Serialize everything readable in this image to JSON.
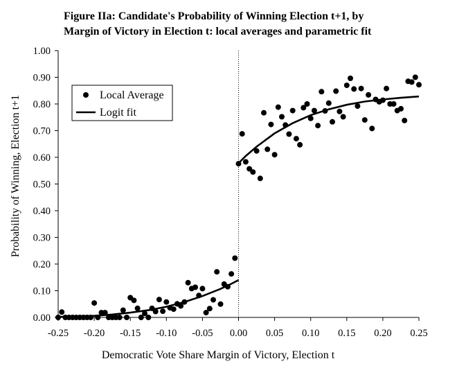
{
  "chart_data": {
    "type": "scatter",
    "title_line1": "Figure IIa: Candidate's Probability of Winning Election t+1, by",
    "title_line2": "Margin of Victory in Election t: local averages and parametric fit",
    "xlabel": "Democratic Vote Share Margin of Victory, Election t",
    "ylabel": "Probability of Winning, Election t+1",
    "xlim": [
      -0.25,
      0.25
    ],
    "ylim": [
      0,
      1
    ],
    "x_ticks": [
      "-0.25",
      "-0.20",
      "-0.15",
      "-0.10",
      "-0.05",
      "0.00",
      "0.05",
      "0.10",
      "0.15",
      "0.20",
      "0.25"
    ],
    "y_ticks": [
      "0.00",
      "0.10",
      "0.20",
      "0.30",
      "0.40",
      "0.50",
      "0.60",
      "0.70",
      "0.80",
      "0.90",
      "1.00"
    ],
    "threshold_x": 0,
    "legend": {
      "placement": "top-left",
      "entries": [
        "Local Average",
        "Logit fit"
      ]
    },
    "series": [
      {
        "name": "Local Average",
        "kind": "points",
        "points": [
          [
            -0.25,
            0.0
          ],
          [
            -0.245,
            0.02
          ],
          [
            -0.24,
            0.0
          ],
          [
            -0.235,
            0.0
          ],
          [
            -0.23,
            0.0
          ],
          [
            -0.225,
            0.0
          ],
          [
            -0.22,
            0.0
          ],
          [
            -0.215,
            0.0
          ],
          [
            -0.21,
            0.0
          ],
          [
            -0.205,
            0.0
          ],
          [
            -0.2,
            0.054
          ],
          [
            -0.195,
            0.0
          ],
          [
            -0.19,
            0.018
          ],
          [
            -0.185,
            0.018
          ],
          [
            -0.18,
            0.0
          ],
          [
            -0.175,
            0.0
          ],
          [
            -0.17,
            0.0
          ],
          [
            -0.165,
            0.0
          ],
          [
            -0.16,
            0.027
          ],
          [
            -0.155,
            0.0
          ],
          [
            -0.15,
            0.074
          ],
          [
            -0.145,
            0.064
          ],
          [
            -0.14,
            0.034
          ],
          [
            -0.135,
            0.0
          ],
          [
            -0.13,
            0.015
          ],
          [
            -0.125,
            0.0
          ],
          [
            -0.12,
            0.034
          ],
          [
            -0.115,
            0.022
          ],
          [
            -0.11,
            0.067
          ],
          [
            -0.105,
            0.023
          ],
          [
            -0.1,
            0.058
          ],
          [
            -0.095,
            0.036
          ],
          [
            -0.09,
            0.031
          ],
          [
            -0.085,
            0.051
          ],
          [
            -0.08,
            0.043
          ],
          [
            -0.075,
            0.058
          ],
          [
            -0.07,
            0.13
          ],
          [
            -0.065,
            0.108
          ],
          [
            -0.06,
            0.113
          ],
          [
            -0.055,
            0.082
          ],
          [
            -0.05,
            0.108
          ],
          [
            -0.045,
            0.018
          ],
          [
            -0.04,
            0.033
          ],
          [
            -0.035,
            0.066
          ],
          [
            -0.03,
            0.171
          ],
          [
            -0.025,
            0.05
          ],
          [
            -0.02,
            0.125
          ],
          [
            -0.015,
            0.115
          ],
          [
            -0.01,
            0.163
          ],
          [
            -0.005,
            0.222
          ],
          [
            0.0,
            0.576
          ],
          [
            0.005,
            0.688
          ],
          [
            0.01,
            0.583
          ],
          [
            0.015,
            0.557
          ],
          [
            0.02,
            0.545
          ],
          [
            0.025,
            0.624
          ],
          [
            0.03,
            0.521
          ],
          [
            0.035,
            0.767
          ],
          [
            0.04,
            0.63
          ],
          [
            0.045,
            0.723
          ],
          [
            0.05,
            0.61
          ],
          [
            0.055,
            0.788
          ],
          [
            0.06,
            0.752
          ],
          [
            0.065,
            0.721
          ],
          [
            0.07,
            0.687
          ],
          [
            0.075,
            0.775
          ],
          [
            0.08,
            0.67
          ],
          [
            0.085,
            0.647
          ],
          [
            0.09,
            0.786
          ],
          [
            0.095,
            0.8
          ],
          [
            0.1,
            0.746
          ],
          [
            0.105,
            0.775
          ],
          [
            0.11,
            0.719
          ],
          [
            0.115,
            0.846
          ],
          [
            0.12,
            0.774
          ],
          [
            0.125,
            0.803
          ],
          [
            0.13,
            0.733
          ],
          [
            0.135,
            0.848
          ],
          [
            0.14,
            0.772
          ],
          [
            0.145,
            0.752
          ],
          [
            0.15,
            0.87
          ],
          [
            0.155,
            0.896
          ],
          [
            0.16,
            0.856
          ],
          [
            0.165,
            0.792
          ],
          [
            0.17,
            0.858
          ],
          [
            0.175,
            0.74
          ],
          [
            0.18,
            0.834
          ],
          [
            0.185,
            0.708
          ],
          [
            0.19,
            0.817
          ],
          [
            0.195,
            0.808
          ],
          [
            0.2,
            0.814
          ],
          [
            0.205,
            0.858
          ],
          [
            0.21,
            0.8
          ],
          [
            0.215,
            0.8
          ],
          [
            0.22,
            0.775
          ],
          [
            0.225,
            0.782
          ],
          [
            0.23,
            0.738
          ],
          [
            0.235,
            0.885
          ],
          [
            0.24,
            0.882
          ],
          [
            0.245,
            0.9
          ],
          [
            0.25,
            0.872
          ]
        ]
      },
      {
        "name": "Logit fit",
        "kind": "line",
        "segments": [
          [
            [
              -0.25,
              0.002
            ],
            [
              -0.225,
              0.003
            ],
            [
              -0.2,
              0.006
            ],
            [
              -0.175,
              0.011
            ],
            [
              -0.15,
              0.018
            ],
            [
              -0.125,
              0.027
            ],
            [
              -0.1,
              0.04
            ],
            [
              -0.075,
              0.058
            ],
            [
              -0.05,
              0.08
            ],
            [
              -0.025,
              0.107
            ],
            [
              -0.01,
              0.126
            ],
            [
              0.0,
              0.14
            ]
          ],
          [
            [
              0.0,
              0.578
            ],
            [
              0.01,
              0.605
            ],
            [
              0.025,
              0.64
            ],
            [
              0.05,
              0.69
            ],
            [
              0.075,
              0.728
            ],
            [
              0.1,
              0.758
            ],
            [
              0.125,
              0.78
            ],
            [
              0.15,
              0.797
            ],
            [
              0.175,
              0.809
            ],
            [
              0.2,
              0.817
            ],
            [
              0.225,
              0.823
            ],
            [
              0.25,
              0.828
            ]
          ]
        ]
      }
    ]
  }
}
